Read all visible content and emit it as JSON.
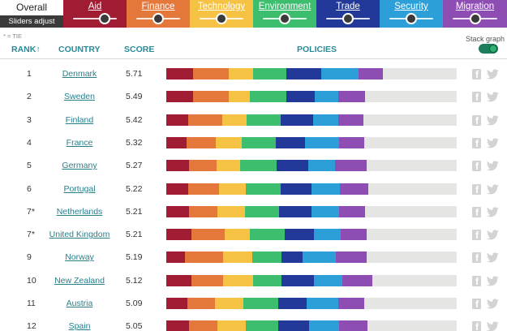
{
  "tabs": [
    {
      "key": "overall",
      "label": "Overall",
      "sub": "Sliders adjust weights",
      "color": "#ffffff"
    },
    {
      "key": "aid",
      "label": "Aid",
      "color": "#a01c33",
      "slider_level": 0.72
    },
    {
      "key": "finance",
      "label": "Finance",
      "color": "#e4783a",
      "slider_level": 0.5
    },
    {
      "key": "technology",
      "label": "Technology",
      "color": "#f6c243",
      "slider_level": 0.5
    },
    {
      "key": "environment",
      "label": "Environment",
      "color": "#3dbd6e",
      "slider_level": 0.5
    },
    {
      "key": "trade",
      "label": "Trade",
      "color": "#22399a",
      "slider_level": 0.5
    },
    {
      "key": "security",
      "label": "Security",
      "color": "#2d9fd8",
      "slider_level": 0.5
    },
    {
      "key": "migration",
      "label": "Migration",
      "color": "#8e4db3",
      "slider_level": 0.5
    }
  ],
  "tie_note": "* = TIE",
  "stack_graph": {
    "label": "Stack graph",
    "enabled": true
  },
  "columns": {
    "rank": "RANK",
    "rank_arrow": "↑",
    "country": "COUNTRY",
    "score": "SCORE",
    "policies": "POLICIES"
  },
  "icons": {
    "share_facebook": "facebook-icon",
    "share_twitter": "twitter-icon"
  },
  "segment_colors": [
    "#a01c33",
    "#e4783a",
    "#f6c243",
    "#3dbd6e",
    "#22399a",
    "#2d9fd8",
    "#8e4db3"
  ],
  "rows": [
    {
      "rank": "1",
      "country": "Denmark",
      "score": "5.71",
      "segments": [
        0.83,
        1.1,
        0.77,
        1.03,
        1.06,
        1.16,
        0.76
      ]
    },
    {
      "rank": "2",
      "country": "Sweden",
      "score": "5.49",
      "segments": [
        0.83,
        1.1,
        0.66,
        1.13,
        0.88,
        0.74,
        0.83
      ]
    },
    {
      "rank": "3",
      "country": "Finland",
      "score": "5.42",
      "segments": [
        0.67,
        1.06,
        0.77,
        1.04,
        1.0,
        0.78,
        0.79
      ]
    },
    {
      "rank": "4",
      "country": "France",
      "score": "5.32",
      "segments": [
        0.64,
        0.9,
        0.79,
        1.07,
        0.89,
        1.06,
        0.78
      ]
    },
    {
      "rank": "5",
      "country": "Germany",
      "score": "5.27",
      "segments": [
        0.71,
        0.84,
        0.75,
        1.12,
        0.99,
        0.82,
        0.98
      ]
    },
    {
      "rank": "6",
      "country": "Portugal",
      "score": "5.22",
      "segments": [
        0.67,
        0.97,
        0.83,
        1.08,
        0.95,
        0.88,
        0.89
      ]
    },
    {
      "rank": "7*",
      "country": "Netherlands",
      "score": "5.21",
      "segments": [
        0.7,
        0.88,
        0.85,
        1.06,
        1.01,
        0.85,
        0.82
      ]
    },
    {
      "rank": "7*",
      "country": "United Kingdom",
      "score": "5.21",
      "segments": [
        0.78,
        1.03,
        0.79,
        1.07,
        0.9,
        0.84,
        0.8
      ]
    },
    {
      "rank": "9",
      "country": "Norway",
      "score": "5.19",
      "segments": [
        0.58,
        1.17,
        0.91,
        0.92,
        0.64,
        1.04,
        0.94
      ]
    },
    {
      "rank": "10",
      "country": "New Zealand",
      "score": "5.12",
      "segments": [
        0.77,
        0.98,
        0.95,
        0.88,
        0.99,
        0.88,
        0.93
      ]
    },
    {
      "rank": "11",
      "country": "Austria",
      "score": "5.09",
      "segments": [
        0.66,
        0.85,
        0.89,
        1.06,
        0.89,
        0.98,
        0.8
      ]
    },
    {
      "rank": "12",
      "country": "Spain",
      "score": "5.05",
      "segments": [
        0.71,
        0.88,
        0.87,
        1.0,
        0.97,
        0.92,
        0.88
      ]
    }
  ],
  "bar_scale_max": 9.0
}
